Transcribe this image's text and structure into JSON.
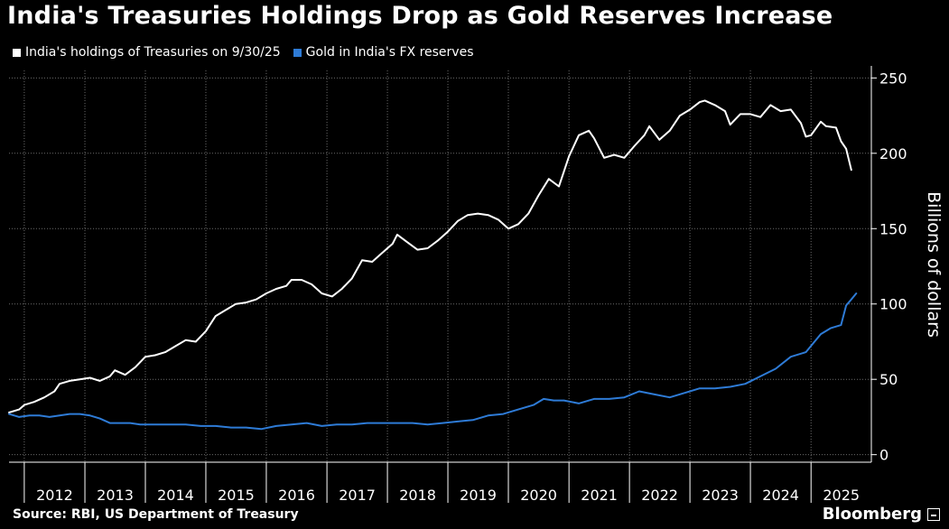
{
  "title": "India's Treasuries Holdings Drop as Gold Reserves Increase",
  "source": "Source: RBI, US Department of Treasury",
  "brand": "Bloomberg",
  "colors": {
    "background": "#000000",
    "treasuries": "#ffffff",
    "gold": "#2e7bd6",
    "grid": "#6a6a6a"
  },
  "chart_data": {
    "type": "line",
    "title": "India's Treasuries Holdings Drop as Gold Reserves Increase",
    "ylabel": "Billions of dollars",
    "y_axis_side": "right",
    "ylim": [
      -5,
      255
    ],
    "yticks": [
      0,
      50,
      100,
      150,
      200,
      250
    ],
    "xlim": [
      "2011-10-01",
      "2025-12-31"
    ],
    "xticks": [
      "2012",
      "2013",
      "2014",
      "2015",
      "2016",
      "2017",
      "2018",
      "2019",
      "2020",
      "2021",
      "2022",
      "2023",
      "2024",
      "2025"
    ],
    "grid": true,
    "legend_position": "top-left",
    "series": [
      {
        "name": "India's holdings of Treasuries on 9/30/25",
        "color": "#ffffff",
        "points": [
          [
            "2011-10-01",
            28
          ],
          [
            "2011-12-01",
            30
          ],
          [
            "2012-01-01",
            33
          ],
          [
            "2012-03-01",
            35
          ],
          [
            "2012-05-01",
            38
          ],
          [
            "2012-07-01",
            42
          ],
          [
            "2012-08-01",
            47
          ],
          [
            "2012-10-01",
            49
          ],
          [
            "2012-12-01",
            50
          ],
          [
            "2013-02-01",
            51
          ],
          [
            "2013-04-01",
            49
          ],
          [
            "2013-06-01",
            52
          ],
          [
            "2013-07-01",
            56
          ],
          [
            "2013-09-01",
            53
          ],
          [
            "2013-11-01",
            58
          ],
          [
            "2014-01-01",
            65
          ],
          [
            "2014-03-01",
            66
          ],
          [
            "2014-05-01",
            68
          ],
          [
            "2014-07-01",
            72
          ],
          [
            "2014-09-01",
            76
          ],
          [
            "2014-11-01",
            75
          ],
          [
            "2015-01-01",
            82
          ],
          [
            "2015-03-01",
            92
          ],
          [
            "2015-05-01",
            96
          ],
          [
            "2015-07-01",
            100
          ],
          [
            "2015-09-01",
            101
          ],
          [
            "2015-11-01",
            103
          ],
          [
            "2016-01-01",
            107
          ],
          [
            "2016-03-01",
            110
          ],
          [
            "2016-05-01",
            112
          ],
          [
            "2016-06-01",
            116
          ],
          [
            "2016-08-01",
            116
          ],
          [
            "2016-10-01",
            113
          ],
          [
            "2016-12-01",
            107
          ],
          [
            "2017-02-01",
            105
          ],
          [
            "2017-04-01",
            110
          ],
          [
            "2017-06-01",
            117
          ],
          [
            "2017-08-01",
            129
          ],
          [
            "2017-10-01",
            128
          ],
          [
            "2017-12-01",
            134
          ],
          [
            "2018-02-01",
            140
          ],
          [
            "2018-03-01",
            146
          ],
          [
            "2018-05-01",
            141
          ],
          [
            "2018-07-01",
            136
          ],
          [
            "2018-09-01",
            137
          ],
          [
            "2018-11-01",
            142
          ],
          [
            "2019-01-01",
            148
          ],
          [
            "2019-03-01",
            155
          ],
          [
            "2019-05-01",
            159
          ],
          [
            "2019-07-01",
            160
          ],
          [
            "2019-09-01",
            159
          ],
          [
            "2019-11-01",
            156
          ],
          [
            "2020-01-01",
            150
          ],
          [
            "2020-03-01",
            153
          ],
          [
            "2020-05-01",
            160
          ],
          [
            "2020-07-01",
            172
          ],
          [
            "2020-09-01",
            183
          ],
          [
            "2020-11-01",
            178
          ],
          [
            "2021-01-01",
            198
          ],
          [
            "2021-03-01",
            212
          ],
          [
            "2021-05-01",
            215
          ],
          [
            "2021-06-01",
            210
          ],
          [
            "2021-08-01",
            197
          ],
          [
            "2021-10-01",
            199
          ],
          [
            "2021-12-01",
            197
          ],
          [
            "2022-02-01",
            205
          ],
          [
            "2022-04-01",
            212
          ],
          [
            "2022-05-01",
            218
          ],
          [
            "2022-07-01",
            209
          ],
          [
            "2022-09-01",
            215
          ],
          [
            "2022-11-01",
            225
          ],
          [
            "2023-01-01",
            229
          ],
          [
            "2023-03-01",
            234
          ],
          [
            "2023-04-01",
            235
          ],
          [
            "2023-06-01",
            232
          ],
          [
            "2023-08-01",
            228
          ],
          [
            "2023-09-01",
            219
          ],
          [
            "2023-11-01",
            226
          ],
          [
            "2024-01-01",
            226
          ],
          [
            "2024-03-01",
            224
          ],
          [
            "2024-05-01",
            232
          ],
          [
            "2024-07-01",
            228
          ],
          [
            "2024-09-01",
            229
          ],
          [
            "2024-11-01",
            220
          ],
          [
            "2024-12-01",
            211
          ],
          [
            "2025-01-01",
            212
          ],
          [
            "2025-03-01",
            221
          ],
          [
            "2025-04-01",
            218
          ],
          [
            "2025-06-01",
            217
          ],
          [
            "2025-07-01",
            208
          ],
          [
            "2025-08-01",
            203
          ],
          [
            "2025-09-01",
            189
          ]
        ]
      },
      {
        "name": "Gold in India's FX reserves",
        "color": "#2e7bd6",
        "points": [
          [
            "2011-10-01",
            27
          ],
          [
            "2011-12-01",
            25
          ],
          [
            "2012-02-01",
            26
          ],
          [
            "2012-04-01",
            26
          ],
          [
            "2012-06-01",
            25
          ],
          [
            "2012-08-01",
            26
          ],
          [
            "2012-10-01",
            27
          ],
          [
            "2012-12-01",
            27
          ],
          [
            "2013-02-01",
            26
          ],
          [
            "2013-04-01",
            24
          ],
          [
            "2013-06-01",
            21
          ],
          [
            "2013-08-01",
            21
          ],
          [
            "2013-10-01",
            21
          ],
          [
            "2013-12-01",
            20
          ],
          [
            "2014-03-01",
            20
          ],
          [
            "2014-06-01",
            20
          ],
          [
            "2014-09-01",
            20
          ],
          [
            "2014-12-01",
            19
          ],
          [
            "2015-03-01",
            19
          ],
          [
            "2015-06-01",
            18
          ],
          [
            "2015-09-01",
            18
          ],
          [
            "2015-12-01",
            17
          ],
          [
            "2016-03-01",
            19
          ],
          [
            "2016-06-01",
            20
          ],
          [
            "2016-09-01",
            21
          ],
          [
            "2016-12-01",
            19
          ],
          [
            "2017-03-01",
            20
          ],
          [
            "2017-06-01",
            20
          ],
          [
            "2017-09-01",
            21
          ],
          [
            "2017-12-01",
            21
          ],
          [
            "2018-03-01",
            21
          ],
          [
            "2018-06-01",
            21
          ],
          [
            "2018-09-01",
            20
          ],
          [
            "2018-12-01",
            21
          ],
          [
            "2019-03-01",
            22
          ],
          [
            "2019-06-01",
            23
          ],
          [
            "2019-09-01",
            26
          ],
          [
            "2019-12-01",
            27
          ],
          [
            "2020-03-01",
            30
          ],
          [
            "2020-06-01",
            33
          ],
          [
            "2020-08-01",
            37
          ],
          [
            "2020-10-01",
            36
          ],
          [
            "2020-12-01",
            36
          ],
          [
            "2021-03-01",
            34
          ],
          [
            "2021-06-01",
            37
          ],
          [
            "2021-09-01",
            37
          ],
          [
            "2021-12-01",
            38
          ],
          [
            "2022-03-01",
            42
          ],
          [
            "2022-06-01",
            40
          ],
          [
            "2022-09-01",
            38
          ],
          [
            "2022-12-01",
            41
          ],
          [
            "2023-03-01",
            44
          ],
          [
            "2023-06-01",
            44
          ],
          [
            "2023-09-01",
            45
          ],
          [
            "2023-12-01",
            47
          ],
          [
            "2024-03-01",
            52
          ],
          [
            "2024-06-01",
            57
          ],
          [
            "2024-09-01",
            65
          ],
          [
            "2024-12-01",
            68
          ],
          [
            "2025-03-01",
            80
          ],
          [
            "2025-05-01",
            84
          ],
          [
            "2025-07-01",
            86
          ],
          [
            "2025-08-01",
            99
          ],
          [
            "2025-09-01",
            103
          ],
          [
            "2025-10-01",
            107
          ]
        ]
      }
    ]
  }
}
